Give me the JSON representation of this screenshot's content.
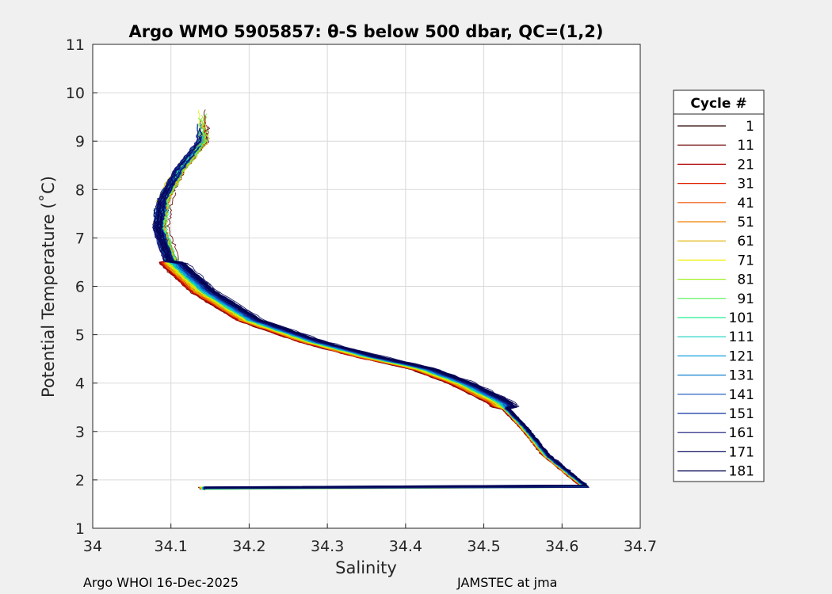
{
  "chart_data": {
    "type": "line",
    "title": "Argo WMO 5905857: θ-S below 500 dbar,  QC=(1,2)",
    "xlabel": "Salinity",
    "ylabel": "Potential Temperature (˚C)",
    "xlim": [
      34.0,
      34.7
    ],
    "ylim": [
      1,
      11
    ],
    "xticks": [
      "34",
      "34.1",
      "34.2",
      "34.3",
      "34.4",
      "34.5",
      "34.6",
      "34.7"
    ],
    "yticks": [
      "1",
      "2",
      "3",
      "4",
      "5",
      "6",
      "7",
      "8",
      "9",
      "10",
      "11"
    ],
    "grid": true,
    "legend": {
      "title": "Cycle #",
      "placement": "outside-right",
      "entries": [
        "1",
        "11",
        "21",
        "31",
        "41",
        "51",
        "61",
        "71",
        "81",
        "91",
        "101",
        "111",
        "121",
        "131",
        "141",
        "151",
        "161",
        "171",
        "181"
      ],
      "colors": [
        "#2a0000",
        "#6e0000",
        "#b00000",
        "#e02000",
        "#f05000",
        "#f08000",
        "#e0b000",
        "#f0f000",
        "#a0f020",
        "#50f050",
        "#20f090",
        "#10d0c0",
        "#10a0e0",
        "#1080d0",
        "#1050c0",
        "#1030a0",
        "#10107a",
        "#101060",
        "#000050"
      ]
    },
    "series_template": {
      "description_points_S": [
        34.63,
        34.58,
        34.55,
        34.52,
        34.47,
        34.42,
        34.35,
        34.28,
        34.2,
        34.14,
        34.1,
        34.085,
        34.09,
        34.11,
        34.14
      ],
      "description_points_T": [
        1.85,
        2.5,
        3.1,
        3.6,
        4.0,
        4.3,
        4.55,
        4.85,
        5.3,
        5.9,
        6.5,
        7.2,
        7.8,
        8.4,
        9.0
      ]
    }
  },
  "footer": {
    "left": "Argo WHOI 16-Dec-2025",
    "right": "JAMSTEC at jma"
  }
}
